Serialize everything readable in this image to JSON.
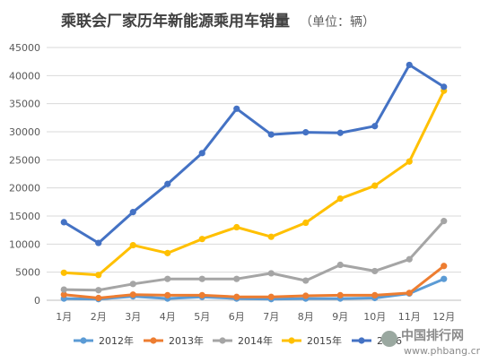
{
  "chart_data": {
    "type": "line",
    "title": "乘联会厂家历年新能源乘用车销量",
    "unit_note": "（单位：辆）",
    "categories": [
      "1月",
      "2月",
      "3月",
      "4月",
      "5月",
      "6月",
      "7月",
      "8月",
      "9月",
      "10月",
      "11月",
      "12月"
    ],
    "y_ticks": [
      "0",
      "5000",
      "10000",
      "15000",
      "20000",
      "25000",
      "30000",
      "35000",
      "40000",
      "45000"
    ],
    "ylim": [
      0,
      45000
    ],
    "grid": true,
    "legend_position": "bottom",
    "series": [
      {
        "name": "2012年",
        "color": "#5b9bd5",
        "values": [
          300,
          200,
          700,
          300,
          600,
          300,
          200,
          300,
          300,
          400,
          1200,
          3800
        ]
      },
      {
        "name": "2013年",
        "color": "#ed7d31",
        "values": [
          1000,
          400,
          1000,
          900,
          900,
          600,
          600,
          800,
          900,
          900,
          1300,
          6100
        ]
      },
      {
        "name": "2014年",
        "color": "#a5a5a5",
        "values": [
          1900,
          1800,
          2900,
          3800,
          3800,
          3800,
          4800,
          3500,
          6300,
          5200,
          7300,
          14100
        ]
      },
      {
        "name": "2015年",
        "color": "#ffc000",
        "values": [
          4900,
          4500,
          9800,
          8400,
          10900,
          13000,
          11300,
          13800,
          18100,
          20400,
          24700,
          37300
        ]
      },
      {
        "name": "2016",
        "color": "#4472c4",
        "values": [
          13900,
          10200,
          15700,
          20700,
          26200,
          34100,
          29500,
          29900,
          29800,
          31000,
          41900,
          38000
        ]
      }
    ]
  },
  "watermark": {
    "text": "中国排行网",
    "url": "www.phbang.cn"
  }
}
